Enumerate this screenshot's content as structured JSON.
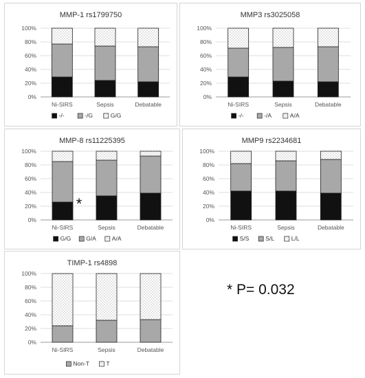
{
  "chart_data": [
    {
      "type": "bar",
      "stacked": true,
      "title": "MMP-1 rs1799750",
      "categories": [
        "Ni-SIRS",
        "Sepsis",
        "Debatable"
      ],
      "yticks": [
        "0%",
        "20%",
        "40%",
        "60%",
        "80%",
        "100%"
      ],
      "ylim": [
        0,
        100
      ],
      "series": [
        {
          "name": "-/-",
          "values": [
            29,
            24,
            22
          ],
          "pattern": "solid"
        },
        {
          "name": "-/G",
          "values": [
            48,
            50,
            51
          ],
          "pattern": "gray"
        },
        {
          "name": "G/G",
          "values": [
            23,
            26,
            27
          ],
          "pattern": "dots"
        }
      ],
      "annotation": ""
    },
    {
      "type": "bar",
      "stacked": true,
      "title": "MMP3 rs3025058",
      "categories": [
        "Ni-SIRS",
        "Sepsis",
        "Debatable"
      ],
      "yticks": [
        "0%",
        "20%",
        "40%",
        "60%",
        "80%",
        "100%"
      ],
      "ylim": [
        0,
        100
      ],
      "series": [
        {
          "name": "-/-",
          "values": [
            29,
            23,
            22
          ],
          "pattern": "solid"
        },
        {
          "name": "-/A",
          "values": [
            42,
            49,
            51
          ],
          "pattern": "gray"
        },
        {
          "name": "A/A",
          "values": [
            29,
            28,
            27
          ],
          "pattern": "dots"
        }
      ],
      "annotation": ""
    },
    {
      "type": "bar",
      "stacked": true,
      "title": "MMP-8 rs11225395",
      "categories": [
        "Ni-SIRS",
        "Sepsis",
        "Debatable"
      ],
      "yticks": [
        "0%",
        "20%",
        "40%",
        "60%",
        "80%",
        "100%"
      ],
      "ylim": [
        0,
        100
      ],
      "series": [
        {
          "name": "G/G",
          "values": [
            26,
            35,
            39
          ],
          "pattern": "solid"
        },
        {
          "name": "G/A",
          "values": [
            59,
            52,
            54
          ],
          "pattern": "gray"
        },
        {
          "name": "A/A",
          "values": [
            15,
            13,
            7
          ],
          "pattern": "dots"
        }
      ],
      "annotation": "*"
    },
    {
      "type": "bar",
      "stacked": true,
      "title": "MMP9 rs2234681",
      "categories": [
        "Ni-SIRS",
        "Sepsis",
        "Debatable"
      ],
      "yticks": [
        "0%",
        "20%",
        "40%",
        "60%",
        "80%",
        "100%"
      ],
      "ylim": [
        0,
        100
      ],
      "series": [
        {
          "name": "S/S",
          "values": [
            42,
            42,
            39
          ],
          "pattern": "solid"
        },
        {
          "name": "S/L",
          "values": [
            40,
            44,
            49
          ],
          "pattern": "gray"
        },
        {
          "name": "L/L",
          "values": [
            18,
            14,
            12
          ],
          "pattern": "dots"
        }
      ],
      "annotation": ""
    },
    {
      "type": "bar",
      "stacked": true,
      "title": "TIMP-1 rs4898",
      "categories": [
        "Ni-SIRS",
        "Sepsis",
        "Debatable"
      ],
      "yticks": [
        "0%",
        "20%",
        "40%",
        "60%",
        "80%",
        "100%"
      ],
      "ylim": [
        0,
        100
      ],
      "series": [
        {
          "name": "Non-T",
          "values": [
            24,
            32,
            33
          ],
          "pattern": "gray"
        },
        {
          "name": "T",
          "values": [
            76,
            68,
            67
          ],
          "pattern": "dots"
        }
      ],
      "annotation": ""
    }
  ],
  "note": "* P= 0.032"
}
